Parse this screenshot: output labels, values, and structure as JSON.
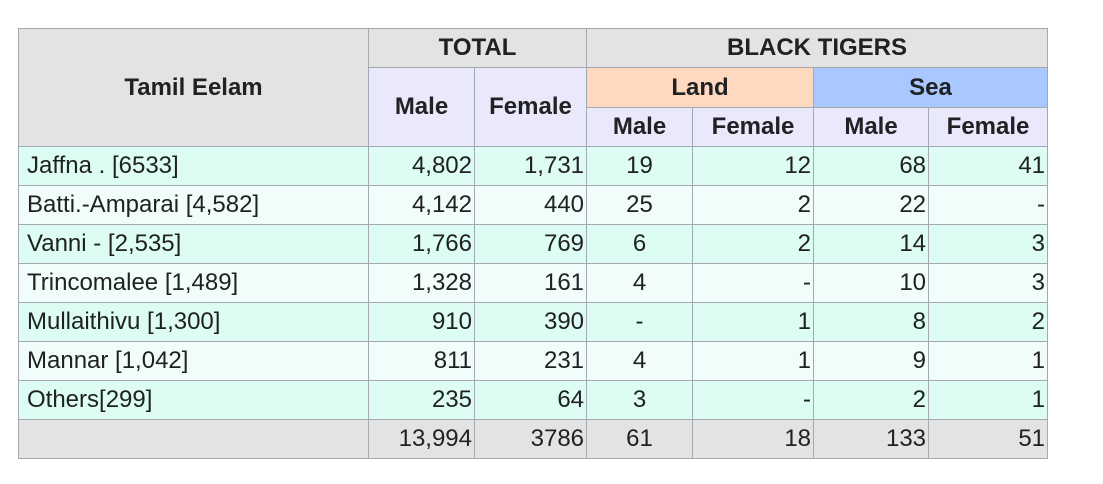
{
  "headers": {
    "region": "Tamil Eelam",
    "total": "TOTAL",
    "black_tigers": "BLACK TIGERS",
    "land": "Land",
    "sea": "Sea",
    "total_male": "Male",
    "total_female": "Female",
    "land_male": "Male",
    "land_female": "Female",
    "sea_male": "Male",
    "sea_female": "Female"
  },
  "rows": [
    {
      "region": "Jaffna . [6533]",
      "total_male": "4,802",
      "total_female": "1,731",
      "land_male": "19",
      "land_female": "12",
      "sea_male": "68",
      "sea_female": "41"
    },
    {
      "region": "Batti.-Amparai [4,582]",
      "total_male": "4,142",
      "total_female": "440",
      "land_male": "25",
      "land_female": "2",
      "sea_male": "22",
      "sea_female": "-"
    },
    {
      "region": "Vanni - [2,535]",
      "total_male": "1,766",
      "total_female": "769",
      "land_male": "6",
      "land_female": "2",
      "sea_male": "14",
      "sea_female": "3"
    },
    {
      "region": "Trincomalee [1,489]",
      "total_male": "1,328",
      "total_female": "161",
      "land_male": "4",
      "land_female": "-",
      "sea_male": "10",
      "sea_female": "3"
    },
    {
      "region": "Mullaithivu [1,300]",
      "total_male": "910",
      "total_female": "390",
      "land_male": "-",
      "land_female": "1",
      "sea_male": "8",
      "sea_female": "2"
    },
    {
      "region": "Mannar [1,042]",
      "total_male": "811",
      "total_female": "231",
      "land_male": "4",
      "land_female": "1",
      "sea_male": "9",
      "sea_female": "1"
    },
    {
      "region": "Others[299]",
      "total_male": "235",
      "total_female": "64",
      "land_male": "3",
      "land_female": "-",
      "sea_male": "2",
      "sea_female": "1"
    }
  ],
  "totals": {
    "region": "",
    "total_male": "13,994",
    "total_female": "3786",
    "land_male": "61",
    "land_female": "18",
    "sea_male": "133",
    "sea_female": "51"
  },
  "colors": {
    "header_grey": "#e3e3e3",
    "header_lavender": "#e9e9fb",
    "land_header": "#ffd8c0",
    "sea_header": "#a8c8ff",
    "row_teal": "#ddfcf3",
    "row_light": "#f1fdfa"
  }
}
